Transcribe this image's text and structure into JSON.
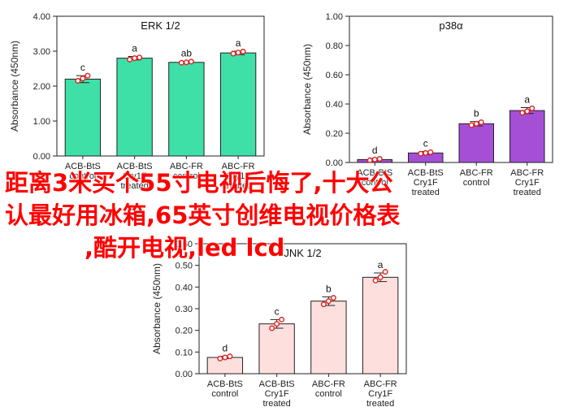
{
  "chart_data": [
    {
      "type": "bar",
      "title": "ERK 1/2",
      "ylabel": "Absorbance (450nm)",
      "ylim": [
        0,
        4
      ],
      "yticks": [
        "0.00",
        "1.00",
        "2.00",
        "3.00",
        "4.00"
      ],
      "categories": [
        [
          "ACB-BtS",
          "control"
        ],
        [
          "ACB-BtS",
          "Cry1F",
          "treated"
        ],
        [
          "ABC-FR",
          "control"
        ],
        [
          "ABC-FR",
          "Cry1F",
          "treated"
        ]
      ],
      "values": [
        2.2,
        2.8,
        2.68,
        2.95
      ],
      "errors": [
        0.1,
        0.05,
        0.03,
        0.05
      ],
      "points": [
        [
          2.15,
          2.22,
          2.3
        ],
        [
          2.76,
          2.8,
          2.82
        ],
        [
          2.67,
          2.68,
          2.7
        ],
        [
          2.93,
          2.96,
          2.99
        ]
      ],
      "letters": [
        "c",
        "a",
        "ab",
        "a"
      ],
      "bar_color": "#3ee0a8"
    },
    {
      "type": "bar",
      "title": "p38α",
      "ylabel": "Absorbance (450nm)",
      "ylim": [
        0,
        1
      ],
      "yticks": [
        "0.00",
        "0.20",
        "0.40",
        "0.60",
        "0.80",
        "1.00"
      ],
      "categories": [
        [
          "ACB-BtS",
          "control"
        ],
        [
          "ACB-BtS",
          "Cry1F",
          "treated"
        ],
        [
          "ABC-FR",
          "control"
        ],
        [
          "ABC-FR",
          "Cry1F",
          "treated"
        ]
      ],
      "values": [
        0.02,
        0.065,
        0.265,
        0.355
      ],
      "errors": [
        0.008,
        0.01,
        0.015,
        0.02
      ],
      "points": [
        [
          0.015,
          0.02,
          0.025
        ],
        [
          0.06,
          0.065,
          0.07
        ],
        [
          0.255,
          0.265,
          0.275
        ],
        [
          0.34,
          0.35,
          0.37
        ]
      ],
      "letters": [
        "d",
        "c",
        "b",
        "a"
      ],
      "bar_color": "#a44fd6"
    },
    {
      "type": "bar",
      "title": "JNK 1/2",
      "ylabel": "Absorbance (450nm)",
      "ylim": [
        0,
        0.6
      ],
      "yticks": [
        "0.00",
        "0.10",
        "0.20",
        "0.30",
        "0.40",
        "0.50",
        "0.60"
      ],
      "categories": [
        [
          "ACB-BtS",
          "control"
        ],
        [
          "ACB-BtS",
          "Cry1F",
          "treated"
        ],
        [
          "ABC-FR",
          "control"
        ],
        [
          "ABC-FR",
          "Cry1F",
          "treated"
        ]
      ],
      "values": [
        0.075,
        0.23,
        0.335,
        0.445
      ],
      "errors": [
        0.005,
        0.02,
        0.02,
        0.02
      ],
      "points": [
        [
          0.07,
          0.075,
          0.08
        ],
        [
          0.21,
          0.23,
          0.25
        ],
        [
          0.32,
          0.335,
          0.35
        ],
        [
          0.43,
          0.445,
          0.47
        ]
      ],
      "letters": [
        "d",
        "c",
        "b",
        "a"
      ],
      "bar_color": "#fde0de"
    }
  ],
  "overlay": {
    "line1": "距离3米买个55寸电视后悔了,十大公",
    "line2": "认最好用冰箱,65英寸创维电视价格表",
    "line3": ",酷开电视,led lcd"
  }
}
